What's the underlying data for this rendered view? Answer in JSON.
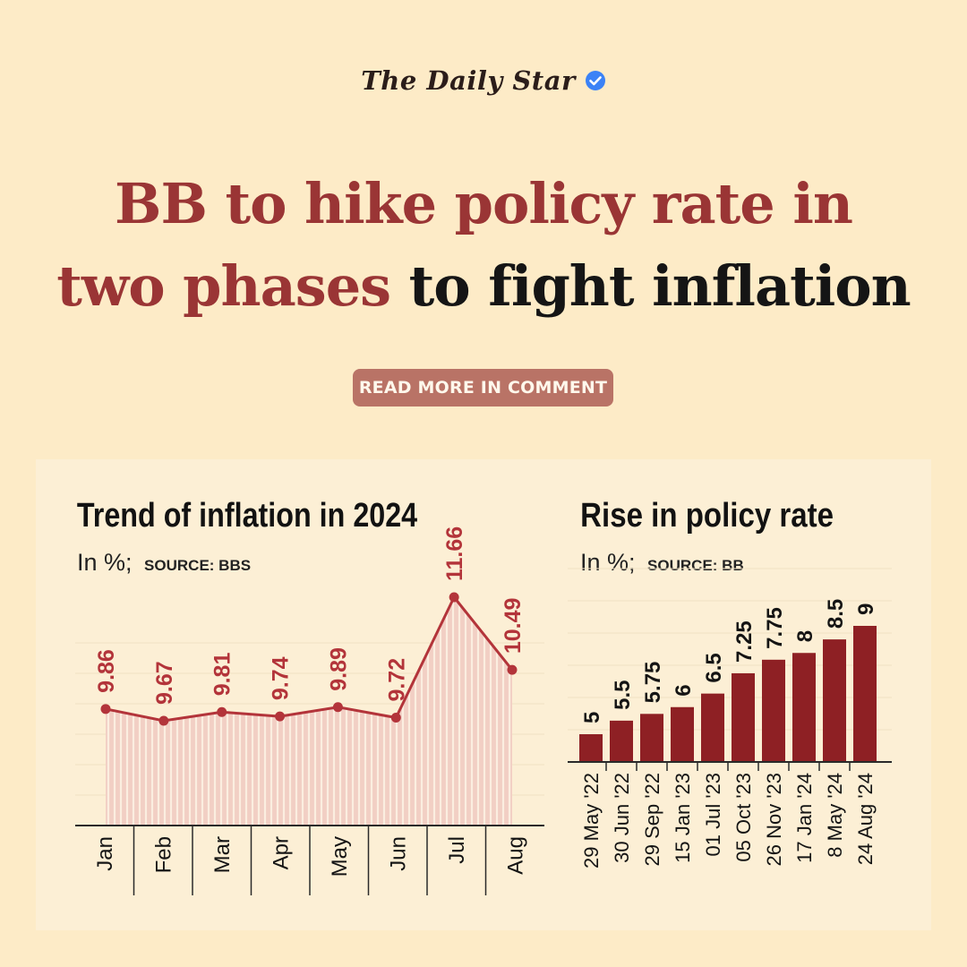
{
  "masthead": {
    "brand": "The Daily Star",
    "verified_icon": "verified-badge-icon",
    "verified_color": "#3b82f6"
  },
  "headline": {
    "accent": "BB to hike policy rate in two phases",
    "rest": "to fight inflation"
  },
  "cta": {
    "label": "READ MORE IN COMMENT"
  },
  "colors": {
    "background": "#fdebc7",
    "accent": "#9a3535",
    "line": "#b3343a",
    "bar": "#8e2024",
    "area": "#f2cfc4",
    "cta_bg": "#b97366"
  },
  "chart_data": [
    {
      "type": "area",
      "title": "Trend of inflation in 2024",
      "subtitle_unit": "In %;",
      "subtitle_source": "SOURCE: BBS",
      "categories": [
        "Jan",
        "Feb",
        "Mar",
        "Apr",
        "May",
        "Jun",
        "Jul",
        "Aug"
      ],
      "values": [
        9.86,
        9.67,
        9.81,
        9.74,
        9.89,
        9.72,
        11.66,
        10.49
      ],
      "labels": [
        "9.86",
        "9.67",
        "9.81",
        "9.74",
        "9.89",
        "9.72",
        "11.66",
        "10.49"
      ],
      "ylim": [
        0,
        14
      ]
    },
    {
      "type": "bar",
      "title": "Rise in policy rate",
      "subtitle_unit": "In %;",
      "subtitle_source": "SOURCE: BB",
      "categories": [
        "29 May '22",
        "30 Jun '22",
        "29 Sep '22",
        "15 Jan '23",
        "01 Jul '23",
        "05 Oct '23",
        "26 Nov '23",
        "17 Jan '24",
        "8 May '24",
        "24 Aug '24"
      ],
      "values": [
        5,
        5.5,
        5.75,
        6,
        6.5,
        7.25,
        7.75,
        8,
        8.5,
        9
      ],
      "labels": [
        "5",
        "5.5",
        "5.75",
        "6",
        "6.5",
        "7.25",
        "7.75",
        "8",
        "8.5",
        "9"
      ],
      "ylim": [
        4,
        9.4
      ]
    }
  ]
}
